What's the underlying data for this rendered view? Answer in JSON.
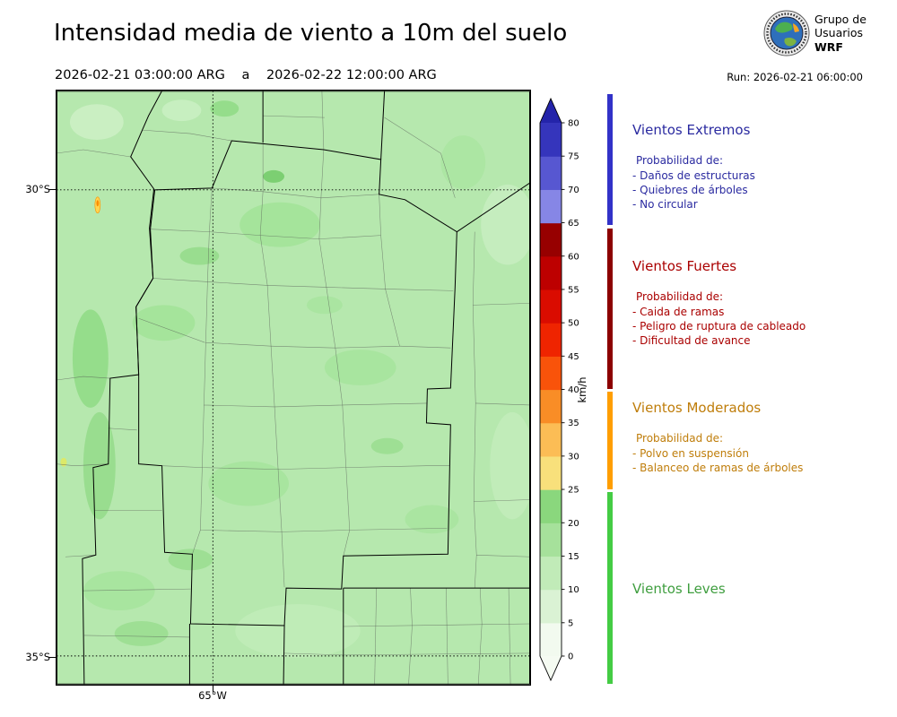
{
  "header": {
    "title": "Intensidad media de viento a 10m del suelo",
    "date_start": "2026-02-21 03:00:00 ARG",
    "date_sep": "a",
    "date_end": "2026-02-22 12:00:00 ARG",
    "run_label": "Run: 2026-02-21 06:00:00",
    "logo": {
      "line1": "Grupo de",
      "line2": "Usuarios",
      "line3": "WRF"
    }
  },
  "map": {
    "lat_labels": [
      "30°S",
      "35°S"
    ],
    "lon_label": "65°W"
  },
  "colorbar": {
    "unit": "km/h",
    "ticks_top_to_bottom": [
      "80",
      "75",
      "70",
      "65",
      "60",
      "55",
      "50",
      "45",
      "40",
      "35",
      "30",
      "25",
      "20",
      "15",
      "10",
      "5",
      "0"
    ],
    "segment_colors_bottom_to_top": [
      "#f2faef",
      "#daf2d4",
      "#c1ebb8",
      "#a6e19b",
      "#8ad77d",
      "#f8e07b",
      "#fcbd55",
      "#f98d26",
      "#f9530a",
      "#ef2400",
      "#da0c00",
      "#bd0000",
      "#970000",
      "#8686e6",
      "#5757d1",
      "#3535bc"
    ],
    "top_arrow_color": "#2424aa",
    "bottom_arrow_color": "#f5fbf2"
  },
  "legend": {
    "sections": [
      {
        "title": "Vientos Extremos",
        "text_color": "#2a2aa0",
        "strip_color": "#3232c8",
        "subtitle": "Probabilidad de:",
        "items": [
          "- Daños de estructuras",
          "- Quiebres de árboles",
          "- No circular"
        ]
      },
      {
        "title": "Vientos Fuertes",
        "text_color": "#aa0000",
        "strip_color": "#8c0000",
        "subtitle": "Probabilidad de:",
        "items": [
          "- Caida de ramas",
          "- Peligro de ruptura de cableado",
          "- Dificultad de avance"
        ]
      },
      {
        "title": "Vientos Moderados",
        "text_color": "#bf7d0a",
        "strip_color": "#ff9e00",
        "subtitle": "Probabilidad de:",
        "items": [
          "- Polvo en suspensión",
          "- Balanceo de ramas de árboles"
        ]
      },
      {
        "title": "Vientos Leves",
        "text_color": "#3f9e3f",
        "strip_color": "#44cc44",
        "subtitle": "",
        "items": []
      }
    ]
  }
}
